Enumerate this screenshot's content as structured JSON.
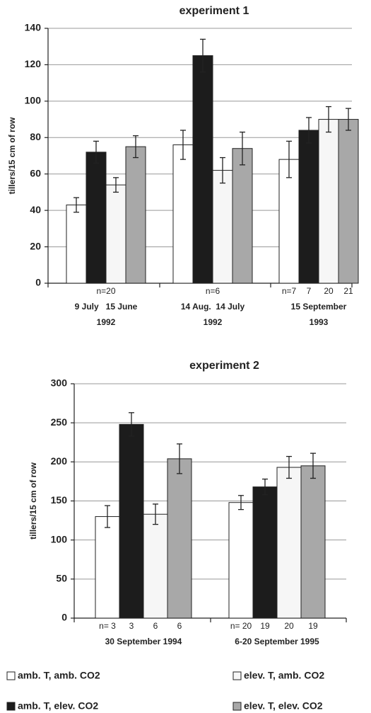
{
  "chart_data": [
    {
      "type": "bar",
      "title": "experiment 1",
      "y_label": "tillers/15 cm of row",
      "ylim": [
        0,
        140
      ],
      "yticks": [
        0,
        20,
        40,
        60,
        80,
        100,
        120,
        140
      ],
      "grid": true,
      "categories": [
        "9 July   15 June",
        "14 Aug.  14 July",
        "15 September"
      ],
      "category_years": [
        "1992",
        "1992",
        "1993"
      ],
      "n_labels": [
        [
          "n=20"
        ],
        [
          "n=6"
        ],
        [
          "n=7",
          "7",
          "20",
          "21"
        ]
      ],
      "series": [
        {
          "color": "#ffffff",
          "values": [
            43,
            76,
            68
          ],
          "errors": [
            4,
            8,
            10
          ]
        },
        {
          "color": "#1c1c1c",
          "values": [
            72,
            125,
            84
          ],
          "errors": [
            6,
            9,
            7
          ]
        },
        {
          "color": "#f6f6f6",
          "values": [
            54,
            62,
            90
          ],
          "errors": [
            4,
            7,
            7
          ]
        },
        {
          "color": "#a8a8a8",
          "values": [
            75,
            74,
            90
          ],
          "errors": [
            6,
            9,
            6
          ]
        }
      ]
    },
    {
      "type": "bar",
      "title": "experiment 2",
      "y_label": "tillers/15 cm of row",
      "ylim": [
        0,
        300
      ],
      "yticks": [
        0,
        50,
        100,
        150,
        200,
        250,
        300
      ],
      "grid": true,
      "categories": [
        "30 September 1994",
        "6-20 September 1995"
      ],
      "n_labels": [
        [
          "n= 3",
          "3",
          "6",
          "6"
        ],
        [
          "n= 20",
          "19",
          "20",
          "19"
        ]
      ],
      "series": [
        {
          "name": "amb. T, amb. CO2",
          "color": "#ffffff",
          "values": [
            130,
            148
          ],
          "errors": [
            14,
            9
          ]
        },
        {
          "name": "amb. T, elev. CO2",
          "color": "#1c1c1c",
          "values": [
            248,
            168
          ],
          "errors": [
            15,
            10
          ]
        },
        {
          "name": "elev. T, amb. CO2",
          "color": "#f6f6f6",
          "values": [
            133,
            193
          ],
          "errors": [
            13,
            14
          ]
        },
        {
          "name": "elev. T, elev. CO2",
          "color": "#a8a8a8",
          "values": [
            204,
            195
          ],
          "errors": [
            19,
            16
          ]
        }
      ]
    }
  ]
}
